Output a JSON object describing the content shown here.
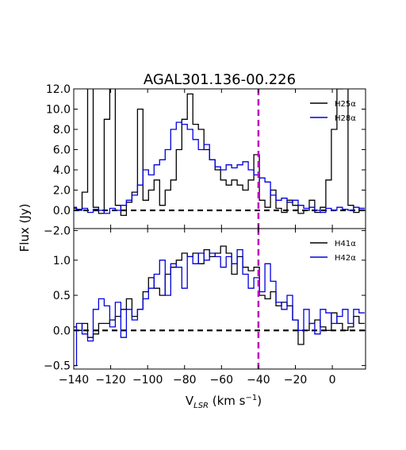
{
  "chart_data": {
    "type": "line",
    "title": "AGAL301.136-00.226",
    "xlabel": "V",
    "xlabel_sub": "LSR",
    "xlabel_unit": " (km s",
    "xlabel_exp": "−1",
    "xlabel_close": ")",
    "ylabel": "Flux (Jy)",
    "xlim": [
      -140,
      18
    ],
    "x_ticks": [
      "−140",
      "−120",
      "−100",
      "−80",
      "−60",
      "−40",
      "−20",
      "0"
    ],
    "x_tick_values": [
      -140,
      -120,
      -100,
      -80,
      -60,
      -40,
      -20,
      0
    ],
    "marker_line": {
      "x": -40,
      "color": "#bf00bf"
    },
    "panels": [
      {
        "ylim": [
          -1.8,
          12.0
        ],
        "y_ticks": [
          "12.0",
          "10.0",
          "8.0",
          "6.0",
          "4.0",
          "2.0",
          "0.0",
          "−2.0"
        ],
        "y_tick_values": [
          12,
          10,
          8,
          6,
          4,
          2,
          0,
          -2
        ],
        "zero_line": 0,
        "legend": [
          "H25α",
          "H28α"
        ],
        "series": [
          {
            "name": "H25α",
            "color": "#000000",
            "x": [
              -140,
              -137,
              -134,
              -131,
              -128,
              -125,
              -122,
              -119,
              -116,
              -113,
              -110,
              -107,
              -104,
              -101,
              -98,
              -95,
              -92,
              -89,
              -86,
              -83,
              -80,
              -77,
              -74,
              -71,
              -68,
              -65,
              -62,
              -59,
              -56,
              -53,
              -50,
              -47,
              -44,
              -41,
              -38,
              -35,
              -32,
              -29,
              -26,
              -23,
              -20,
              -17,
              -14,
              -11,
              -8,
              -5,
              -2,
              1,
              4,
              7,
              10,
              13,
              16
            ],
            "y": [
              0.2,
              0.1,
              1.8,
              13,
              0.3,
              -0.3,
              9,
              13,
              0.5,
              -0.5,
              0.8,
              1.8,
              10,
              1,
              2,
              3,
              0.5,
              2,
              3,
              6,
              9,
              11.5,
              8.5,
              8,
              6,
              5,
              4,
              3,
              2.5,
              3,
              2.5,
              2,
              3,
              5.5,
              1,
              0.3,
              2,
              0.2,
              -0.2,
              1,
              0.5,
              -0.3,
              0,
              1,
              -0.2,
              0.3,
              3,
              8,
              12,
              14,
              0.5,
              -0.2,
              0.2
            ]
          },
          {
            "name": "H28α",
            "color": "#0000dd",
            "x": [
              -140,
              -137,
              -134,
              -131,
              -128,
              -125,
              -122,
              -119,
              -116,
              -113,
              -110,
              -107,
              -104,
              -101,
              -98,
              -95,
              -92,
              -89,
              -86,
              -83,
              -80,
              -77,
              -74,
              -71,
              -68,
              -65,
              -62,
              -59,
              -56,
              -53,
              -50,
              -47,
              -44,
              -41,
              -38,
              -35,
              -32,
              -29,
              -26,
              -23,
              -20,
              -17,
              -14,
              -11,
              -8,
              -5,
              -2,
              1,
              4,
              7,
              10,
              13,
              16
            ],
            "y": [
              0.3,
              0,
              0.2,
              -0.2,
              0.1,
              0,
              -0.3,
              0.2,
              0,
              0.5,
              1,
              1.5,
              2.5,
              4,
              3.5,
              4.5,
              5,
              6,
              8,
              8.7,
              8.5,
              8,
              7,
              6,
              6.5,
              5,
              4.3,
              4,
              4.5,
              4.2,
              4.5,
              4.8,
              4,
              3.5,
              3.2,
              2.8,
              1.5,
              1,
              1.2,
              0.8,
              1,
              0.5,
              0.2,
              0.3,
              0,
              -0.2,
              0.2,
              0,
              0.3,
              0.1,
              0,
              0.3,
              0.2
            ]
          }
        ]
      },
      {
        "ylim": [
          -0.55,
          1.45
        ],
        "y_ticks": [
          "1.0",
          "0.5",
          "0.0",
          "−0.5"
        ],
        "y_tick_values": [
          1.0,
          0.5,
          0.0,
          -0.5
        ],
        "zero_line": 0,
        "legend": [
          "H41α",
          "H42α"
        ],
        "series": [
          {
            "name": "H41α",
            "color": "#000000",
            "x": [
              -140,
              -137,
              -134,
              -131,
              -128,
              -125,
              -122,
              -119,
              -116,
              -113,
              -110,
              -107,
              -104,
              -101,
              -98,
              -95,
              -92,
              -89,
              -86,
              -83,
              -80,
              -77,
              -74,
              -71,
              -68,
              -65,
              -62,
              -59,
              -56,
              -53,
              -50,
              -47,
              -44,
              -41,
              -38,
              -35,
              -32,
              -29,
              -26,
              -23,
              -20,
              -17,
              -14,
              -11,
              -8,
              -5,
              -2,
              1,
              4,
              7,
              10,
              13,
              16
            ],
            "y": [
              0.05,
              0,
              0.1,
              -0.1,
              -0.05,
              0.1,
              0.1,
              0.15,
              0.2,
              0.3,
              0.45,
              0.2,
              0.3,
              0.55,
              0.75,
              0.6,
              0.5,
              0.8,
              0.9,
              1.0,
              1.1,
              1.05,
              1.1,
              0.95,
              1.15,
              1.05,
              1.1,
              1.2,
              1.1,
              0.8,
              1.05,
              0.9,
              0.85,
              0.9,
              0.5,
              0.45,
              0.55,
              0.35,
              0.4,
              0.35,
              0.15,
              -0.2,
              0.0,
              0.1,
              0.15,
              0.05,
              0.0,
              0.25,
              0.1,
              0.0,
              0.05,
              0.2,
              0.1
            ]
          },
          {
            "name": "H42α",
            "color": "#0000dd",
            "x": [
              -140,
              -137,
              -134,
              -131,
              -128,
              -125,
              -122,
              -119,
              -116,
              -113,
              -110,
              -107,
              -104,
              -101,
              -98,
              -95,
              -92,
              -89,
              -86,
              -83,
              -80,
              -77,
              -74,
              -71,
              -68,
              -65,
              -62,
              -59,
              -56,
              -53,
              -50,
              -47,
              -44,
              -41,
              -38,
              -35,
              -32,
              -29,
              -26,
              -23,
              -20,
              -17,
              -14,
              -11,
              -8,
              -5,
              -2,
              1,
              4,
              7,
              10,
              13,
              16
            ],
            "y": [
              -0.5,
              0.1,
              -0.05,
              -0.15,
              0.3,
              0.45,
              0.35,
              0.05,
              0.4,
              -0.1,
              0.3,
              0.15,
              0.3,
              0.45,
              0.6,
              0.8,
              1.0,
              0.5,
              0.95,
              0.9,
              0.6,
              1.05,
              0.95,
              1.1,
              1.0,
              1.1,
              1.05,
              0.9,
              1.05,
              0.95,
              1.15,
              0.8,
              0.6,
              0.75,
              0.55,
              0.95,
              0.7,
              0.4,
              0.3,
              0.5,
              0.15,
              0.0,
              0.3,
              0.1,
              -0.05,
              0.3,
              0.25,
              0.1,
              0.2,
              0.3,
              0.1,
              0.3,
              0.25
            ]
          }
        ]
      }
    ]
  }
}
